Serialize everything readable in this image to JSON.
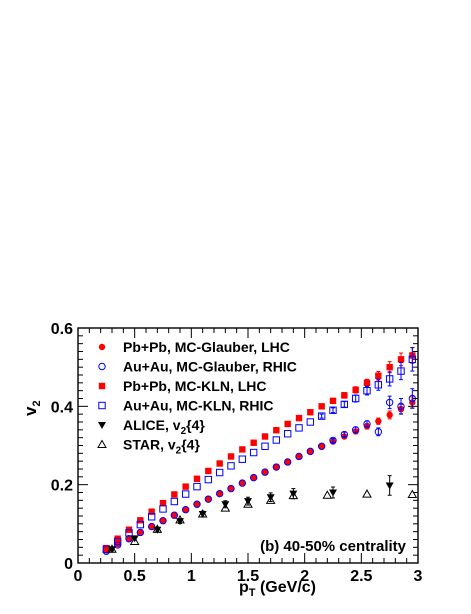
{
  "chart_data": {
    "type": "scatter",
    "xlabel": "p",
    "xlabel_sub": "T",
    "xlabel_unit": " (GeV/c)",
    "ylabel": "v",
    "ylabel_sub": "2",
    "xlim": [
      0,
      3
    ],
    "ylim": [
      0,
      0.6
    ],
    "x_ticks": [
      "0",
      "0.5",
      "1",
      "1.5",
      "2",
      "2.5",
      "3"
    ],
    "y_ticks": [
      "0",
      "0.2",
      "0.4",
      "0.6"
    ],
    "annotation": "(b) 40-50% centrality",
    "legend_placement": "top-left",
    "series": [
      {
        "name": "Pb+Pb, MC-Glauber, LHC",
        "label_main": "Pb+Pb, MC-Glauber, LHC",
        "label_sub": "",
        "label_tail": "",
        "marker": "circle-filled",
        "color": "#ff0000",
        "x": [
          0.25,
          0.35,
          0.45,
          0.55,
          0.65,
          0.75,
          0.85,
          0.95,
          1.05,
          1.15,
          1.25,
          1.35,
          1.45,
          1.55,
          1.65,
          1.75,
          1.85,
          1.95,
          2.05,
          2.15,
          2.25,
          2.35,
          2.45,
          2.55,
          2.65,
          2.75,
          2.85,
          2.95
        ],
        "y": [
          0.032,
          0.048,
          0.063,
          0.079,
          0.094,
          0.108,
          0.122,
          0.136,
          0.15,
          0.164,
          0.178,
          0.191,
          0.205,
          0.218,
          0.232,
          0.245,
          0.258,
          0.271,
          0.285,
          0.297,
          0.31,
          0.323,
          0.336,
          0.349,
          0.362,
          0.378,
          0.393,
          0.41
        ],
        "err": [
          0,
          0,
          0,
          0,
          0,
          0,
          0,
          0,
          0,
          0,
          0,
          0,
          0,
          0,
          0,
          0,
          0,
          0,
          0,
          0,
          0,
          0.005,
          0.006,
          0.007,
          0.008,
          0.01,
          0.012,
          0.014
        ]
      },
      {
        "name": "Au+Au, MC-Glauber, RHIC",
        "label_main": "Au+Au, MC-Glauber, RHIC",
        "label_sub": "",
        "label_tail": "",
        "marker": "circle-open",
        "color": "#0000ff",
        "x": [
          0.25,
          0.35,
          0.45,
          0.55,
          0.65,
          0.75,
          0.85,
          0.95,
          1.05,
          1.15,
          1.25,
          1.35,
          1.45,
          1.55,
          1.65,
          1.75,
          1.85,
          1.95,
          2.05,
          2.15,
          2.25,
          2.35,
          2.45,
          2.55,
          2.65,
          2.75,
          2.85,
          2.95
        ],
        "y": [
          0.03,
          0.046,
          0.062,
          0.078,
          0.093,
          0.108,
          0.122,
          0.136,
          0.15,
          0.163,
          0.177,
          0.19,
          0.204,
          0.218,
          0.232,
          0.245,
          0.258,
          0.272,
          0.285,
          0.298,
          0.313,
          0.328,
          0.34,
          0.355,
          0.335,
          0.41,
          0.4,
          0.42
        ],
        "err": [
          0,
          0,
          0,
          0,
          0,
          0,
          0,
          0,
          0,
          0,
          0,
          0,
          0,
          0,
          0,
          0,
          0,
          0,
          0,
          0,
          0.005,
          0.006,
          0.007,
          0.008,
          0.01,
          0.016,
          0.02,
          0.025
        ]
      },
      {
        "name": "Pb+Pb, MC-KLN, LHC",
        "label_main": "Pb+Pb, MC-KLN, LHC",
        "label_sub": "",
        "label_tail": "",
        "marker": "square-filled",
        "color": "#ff0000",
        "x": [
          0.25,
          0.35,
          0.45,
          0.55,
          0.65,
          0.75,
          0.85,
          0.95,
          1.05,
          1.15,
          1.25,
          1.35,
          1.45,
          1.55,
          1.65,
          1.75,
          1.85,
          1.95,
          2.05,
          2.15,
          2.25,
          2.35,
          2.45,
          2.55,
          2.65,
          2.75,
          2.85,
          2.95
        ],
        "y": [
          0.038,
          0.062,
          0.085,
          0.109,
          0.131,
          0.153,
          0.175,
          0.195,
          0.215,
          0.235,
          0.254,
          0.272,
          0.29,
          0.307,
          0.323,
          0.339,
          0.355,
          0.37,
          0.385,
          0.4,
          0.414,
          0.428,
          0.442,
          0.46,
          0.478,
          0.5,
          0.52,
          0.53
        ],
        "err": [
          0,
          0,
          0,
          0,
          0,
          0,
          0,
          0,
          0,
          0,
          0,
          0,
          0,
          0,
          0,
          0,
          0,
          0.004,
          0.005,
          0.005,
          0.006,
          0.007,
          0.008,
          0.009,
          0.011,
          0.014,
          0.016,
          0.02
        ]
      },
      {
        "name": "Au+Au, MC-KLN, RHIC",
        "label_main": "Au+Au, MC-KLN, RHIC",
        "label_sub": "",
        "label_tail": "",
        "marker": "square-open",
        "color": "#0000ff",
        "x": [
          0.25,
          0.35,
          0.45,
          0.55,
          0.65,
          0.75,
          0.85,
          0.95,
          1.05,
          1.15,
          1.25,
          1.35,
          1.45,
          1.55,
          1.65,
          1.75,
          1.85,
          1.95,
          2.05,
          2.15,
          2.25,
          2.35,
          2.45,
          2.55,
          2.65,
          2.75,
          2.85,
          2.95
        ],
        "y": [
          0.035,
          0.055,
          0.077,
          0.098,
          0.118,
          0.138,
          0.157,
          0.176,
          0.195,
          0.213,
          0.231,
          0.248,
          0.265,
          0.282,
          0.298,
          0.314,
          0.33,
          0.345,
          0.36,
          0.375,
          0.39,
          0.405,
          0.42,
          0.44,
          0.455,
          0.47,
          0.49,
          0.52
        ],
        "err": [
          0,
          0,
          0,
          0,
          0,
          0,
          0,
          0,
          0,
          0,
          0,
          0,
          0,
          0,
          0,
          0,
          0,
          0,
          0,
          0.005,
          0.006,
          0.007,
          0.009,
          0.011,
          0.014,
          0.018,
          0.022,
          0.03
        ]
      },
      {
        "name": "ALICE, v2{4}",
        "label_main": "ALICE, v",
        "label_sub": "2",
        "label_tail": "{4}",
        "marker": "triangle-down-filled",
        "color": "#000000",
        "x": [
          0.3,
          0.5,
          0.7,
          0.9,
          1.1,
          1.3,
          1.5,
          1.7,
          1.9,
          2.25,
          2.75
        ],
        "y": [
          0.035,
          0.063,
          0.085,
          0.107,
          0.125,
          0.15,
          0.158,
          0.168,
          0.177,
          0.18,
          0.198
        ],
        "err": [
          0.004,
          0.004,
          0.005,
          0.006,
          0.007,
          0.009,
          0.01,
          0.011,
          0.013,
          0.014,
          0.025
        ]
      },
      {
        "name": "STAR, v2{4}",
        "label_main": "STAR, v",
        "label_sub": "2",
        "label_tail": "{4}",
        "marker": "triangle-up-open",
        "color": "#000000",
        "x": [
          0.3,
          0.5,
          0.7,
          0.9,
          1.1,
          1.3,
          1.5,
          1.7,
          1.9,
          2.2,
          2.55,
          2.95
        ],
        "y": [
          0.035,
          0.055,
          0.086,
          0.11,
          0.125,
          0.14,
          0.15,
          0.16,
          0.172,
          0.173,
          0.176,
          0.175
        ],
        "err": [
          0,
          0,
          0,
          0,
          0,
          0,
          0,
          0,
          0,
          0,
          0,
          0
        ]
      }
    ]
  }
}
